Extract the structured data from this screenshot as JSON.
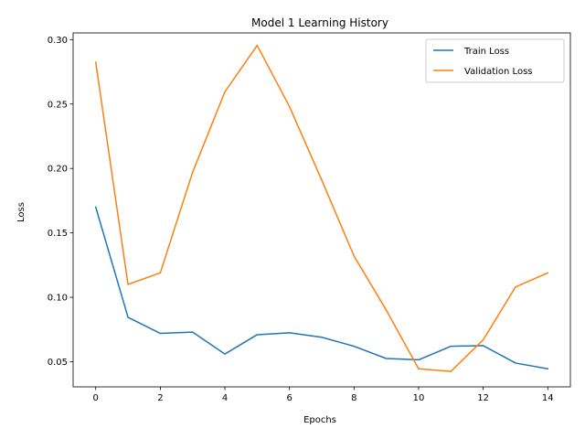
{
  "chart_data": {
    "type": "line",
    "title": "Model 1 Learning History",
    "xlabel": "Epochs",
    "ylabel": "Loss",
    "x": [
      0,
      1,
      2,
      3,
      4,
      5,
      6,
      7,
      8,
      9,
      10,
      11,
      12,
      13,
      14
    ],
    "xlim": [
      -0.7,
      14.7
    ],
    "ylim": [
      0.0305,
      0.3052
    ],
    "xticks": [
      0,
      2,
      4,
      6,
      8,
      10,
      12,
      14
    ],
    "xtick_labels": [
      "0",
      "2",
      "4",
      "6",
      "8",
      "10",
      "12",
      "14"
    ],
    "yticks": [
      0.05,
      0.1,
      0.15,
      0.2,
      0.25,
      0.3
    ],
    "ytick_labels": [
      "0.05",
      "0.10",
      "0.15",
      "0.20",
      "0.25",
      "0.30"
    ],
    "grid": false,
    "legend_position": "top-right",
    "series": [
      {
        "name": "Train Loss",
        "color": "#1f77b4",
        "values": [
          0.17,
          0.0845,
          0.072,
          0.073,
          0.056,
          0.071,
          0.0725,
          0.069,
          0.062,
          0.0525,
          0.0515,
          0.062,
          0.0625,
          0.049,
          0.0445
        ]
      },
      {
        "name": "Validation Loss",
        "color": "#ff7f0e",
        "values": [
          0.2825,
          0.11,
          0.119,
          0.197,
          0.2595,
          0.2955,
          0.248,
          0.191,
          0.132,
          0.09,
          0.0445,
          0.0425,
          0.067,
          0.108,
          0.119
        ]
      }
    ]
  }
}
